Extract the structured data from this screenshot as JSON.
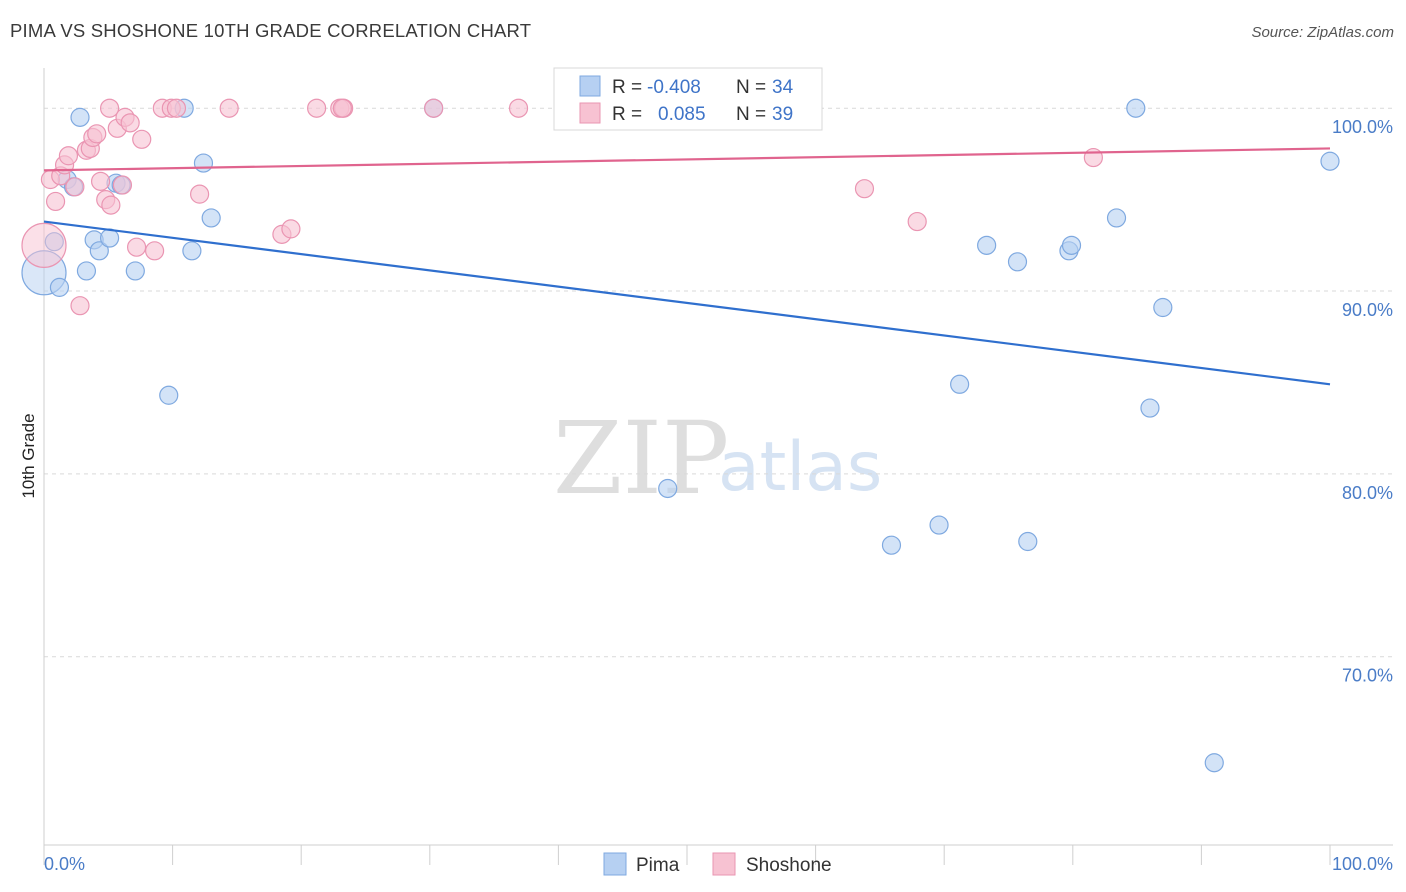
{
  "header": {
    "title": "PIMA VS SHOSHONE 10TH GRADE CORRELATION CHART",
    "source": "Source: ZipAtlas.com"
  },
  "watermark": {
    "zip": "ZIP",
    "atlas": "atlas"
  },
  "colors": {
    "pima_fill": "#b6d0f2",
    "pima_stroke": "#7fa9e0",
    "pima_line": "#2f6fce",
    "shoshone_fill": "#f7c2d2",
    "shoshone_stroke": "#ea95b2",
    "shoshone_line": "#e0648e",
    "tick": "#4a7cc7",
    "grid": "#d9d9d9"
  },
  "stats": {
    "pima": {
      "r_label": "R =",
      "r_value": "-0.408",
      "n_label": "N =",
      "n_value": "34"
    },
    "shoshone": {
      "r_label": "R =",
      "r_value": "0.085",
      "n_label": "N =",
      "n_value": "39"
    }
  },
  "chart_data": {
    "type": "scatter",
    "title": "PIMA VS SHOSHONE 10TH GRADE CORRELATION CHART",
    "xlabel": "",
    "ylabel": "10th Grade",
    "xlim": [
      0,
      100
    ],
    "ylim": [
      59.7,
      102.2
    ],
    "x_ticks": [
      {
        "value": 0,
        "label": "0.0%"
      },
      {
        "value": 100,
        "label": "100.0%"
      }
    ],
    "y_ticks": [
      {
        "value": 100,
        "label": "100.0%"
      },
      {
        "value": 90,
        "label": "90.0%"
      },
      {
        "value": 80,
        "label": "80.0%"
      },
      {
        "value": 70,
        "label": "70.0%"
      }
    ],
    "legend": [
      "Pima",
      "Shoshone"
    ],
    "series": [
      {
        "name": "Pima",
        "trend": {
          "x": [
            0,
            100
          ],
          "y": [
            93.8,
            84.9
          ]
        },
        "points": [
          {
            "x": 0.0,
            "y": 91.0,
            "big": true
          },
          {
            "x": 0.8,
            "y": 92.7
          },
          {
            "x": 1.2,
            "y": 90.2
          },
          {
            "x": 1.8,
            "y": 96.1
          },
          {
            "x": 2.3,
            "y": 95.7
          },
          {
            "x": 2.8,
            "y": 99.5
          },
          {
            "x": 3.3,
            "y": 91.1
          },
          {
            "x": 3.9,
            "y": 92.8
          },
          {
            "x": 4.3,
            "y": 92.2
          },
          {
            "x": 5.6,
            "y": 95.9
          },
          {
            "x": 6.0,
            "y": 95.8
          },
          {
            "x": 5.1,
            "y": 92.9
          },
          {
            "x": 7.1,
            "y": 91.1
          },
          {
            "x": 9.7,
            "y": 84.3
          },
          {
            "x": 10.9,
            "y": 100.0
          },
          {
            "x": 12.4,
            "y": 97.0
          },
          {
            "x": 11.5,
            "y": 92.2
          },
          {
            "x": 13.0,
            "y": 94.0
          },
          {
            "x": 30.3,
            "y": 100.0
          },
          {
            "x": 48.5,
            "y": 79.2
          },
          {
            "x": 65.9,
            "y": 76.1
          },
          {
            "x": 69.6,
            "y": 77.2
          },
          {
            "x": 71.2,
            "y": 84.9
          },
          {
            "x": 73.3,
            "y": 92.5
          },
          {
            "x": 75.7,
            "y": 91.6
          },
          {
            "x": 76.5,
            "y": 76.3
          },
          {
            "x": 79.7,
            "y": 92.2
          },
          {
            "x": 79.9,
            "y": 92.5
          },
          {
            "x": 83.4,
            "y": 94.0
          },
          {
            "x": 84.9,
            "y": 100.0
          },
          {
            "x": 86.0,
            "y": 83.6
          },
          {
            "x": 87.0,
            "y": 89.1
          },
          {
            "x": 91.0,
            "y": 64.2
          },
          {
            "x": 100.0,
            "y": 97.1
          }
        ]
      },
      {
        "name": "Shoshone",
        "trend": {
          "x": [
            0,
            100
          ],
          "y": [
            96.6,
            97.8
          ]
        },
        "points": [
          {
            "x": 0.0,
            "y": 92.5,
            "big": true
          },
          {
            "x": 0.5,
            "y": 96.1
          },
          {
            "x": 0.9,
            "y": 94.9
          },
          {
            "x": 1.3,
            "y": 96.3
          },
          {
            "x": 1.6,
            "y": 96.9
          },
          {
            "x": 1.9,
            "y": 97.4
          },
          {
            "x": 2.4,
            "y": 95.7
          },
          {
            "x": 2.8,
            "y": 89.2
          },
          {
            "x": 3.3,
            "y": 97.7
          },
          {
            "x": 3.6,
            "y": 97.8
          },
          {
            "x": 3.8,
            "y": 98.4
          },
          {
            "x": 4.1,
            "y": 98.6
          },
          {
            "x": 4.4,
            "y": 96.0
          },
          {
            "x": 4.8,
            "y": 95.0
          },
          {
            "x": 5.2,
            "y": 94.7
          },
          {
            "x": 5.1,
            "y": 100.0
          },
          {
            "x": 5.7,
            "y": 98.9
          },
          {
            "x": 6.1,
            "y": 95.8
          },
          {
            "x": 6.3,
            "y": 99.5
          },
          {
            "x": 6.7,
            "y": 99.2
          },
          {
            "x": 7.2,
            "y": 92.4
          },
          {
            "x": 7.6,
            "y": 98.3
          },
          {
            "x": 8.6,
            "y": 92.2
          },
          {
            "x": 9.2,
            "y": 100.0
          },
          {
            "x": 9.9,
            "y": 100.0
          },
          {
            "x": 10.3,
            "y": 100.0
          },
          {
            "x": 12.1,
            "y": 95.3
          },
          {
            "x": 14.4,
            "y": 100.0
          },
          {
            "x": 18.5,
            "y": 93.1
          },
          {
            "x": 19.2,
            "y": 93.4
          },
          {
            "x": 21.2,
            "y": 100.0
          },
          {
            "x": 23.0,
            "y": 100.0
          },
          {
            "x": 23.3,
            "y": 100.0
          },
          {
            "x": 30.3,
            "y": 100.0
          },
          {
            "x": 36.9,
            "y": 100.0
          },
          {
            "x": 63.8,
            "y": 95.6
          },
          {
            "x": 67.9,
            "y": 93.8
          },
          {
            "x": 81.6,
            "y": 97.3
          },
          {
            "x": 23.2,
            "y": 100.0
          }
        ]
      }
    ]
  }
}
